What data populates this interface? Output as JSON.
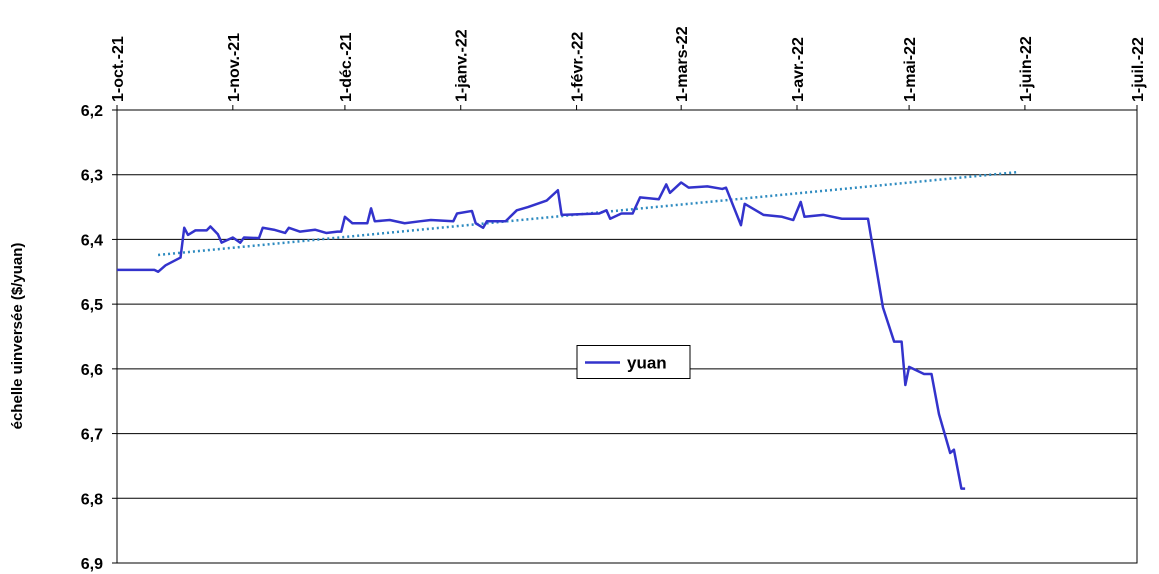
{
  "chart_data": {
    "type": "line",
    "y_axis_label": "échelle uinversée ($/yuan)",
    "y_inverted": true,
    "grid": true,
    "legend": "center",
    "xlim": [
      "2021-10-01",
      "2022-07-01"
    ],
    "xticks": [
      {
        "value": "2021-10-01",
        "label": "1-oct.-21"
      },
      {
        "value": "2021-11-01",
        "label": "1-nov.-21"
      },
      {
        "value": "2021-12-01",
        "label": "1-déc.-21"
      },
      {
        "value": "2022-01-01",
        "label": "1-janv.-22"
      },
      {
        "value": "2022-02-01",
        "label": "1-févr.-22"
      },
      {
        "value": "2022-03-01",
        "label": "1-mars-22"
      },
      {
        "value": "2022-04-01",
        "label": "1-avr.-22"
      },
      {
        "value": "2022-05-01",
        "label": "1-mai-22"
      },
      {
        "value": "2022-06-01",
        "label": "1-juin-22"
      },
      {
        "value": "2022-07-01",
        "label": "1-juil.-22"
      }
    ],
    "ylim": [
      6.2,
      6.9
    ],
    "yticks": [
      {
        "value": 6.2,
        "label": "6,2"
      },
      {
        "value": 6.3,
        "label": "6,3"
      },
      {
        "value": 6.4,
        "label": "6,4"
      },
      {
        "value": 6.5,
        "label": "6,5"
      },
      {
        "value": 6.6,
        "label": "6,6"
      },
      {
        "value": 6.7,
        "label": "6,7"
      },
      {
        "value": 6.8,
        "label": "6,8"
      },
      {
        "value": 6.9,
        "label": "6,9"
      }
    ],
    "series": [
      {
        "name": "yuan",
        "color": "#3333cc",
        "x": [
          "2021-10-01",
          "2021-10-11",
          "2021-10-12",
          "2021-10-14",
          "2021-10-18",
          "2021-10-19",
          "2021-10-20",
          "2021-10-22",
          "2021-10-25",
          "2021-10-26",
          "2021-10-28",
          "2021-10-29",
          "2021-11-01",
          "2021-11-03",
          "2021-11-04",
          "2021-11-08",
          "2021-11-09",
          "2021-11-12",
          "2021-11-15",
          "2021-11-16",
          "2021-11-19",
          "2021-11-23",
          "2021-11-26",
          "2021-11-29",
          "2021-11-30",
          "2021-12-01",
          "2021-12-03",
          "2021-12-07",
          "2021-12-08",
          "2021-12-09",
          "2021-12-13",
          "2021-12-17",
          "2021-12-21",
          "2021-12-24",
          "2021-12-30",
          "2021-12-31",
          "2022-01-04",
          "2022-01-05",
          "2022-01-07",
          "2022-01-08",
          "2022-01-13",
          "2022-01-16",
          "2022-01-19",
          "2022-01-24",
          "2022-01-27",
          "2022-01-28",
          "2022-02-07",
          "2022-02-09",
          "2022-02-10",
          "2022-02-13",
          "2022-02-16",
          "2022-02-18",
          "2022-02-23",
          "2022-02-25",
          "2022-02-26",
          "2022-03-01",
          "2022-03-03",
          "2022-03-08",
          "2022-03-12",
          "2022-03-13",
          "2022-03-17",
          "2022-03-18",
          "2022-03-23",
          "2022-03-28",
          "2022-03-31",
          "2022-04-02",
          "2022-04-03",
          "2022-04-08",
          "2022-04-13",
          "2022-04-20",
          "2022-04-24",
          "2022-04-27",
          "2022-04-29",
          "2022-04-30",
          "2022-05-01",
          "2022-05-05",
          "2022-05-07",
          "2022-05-09",
          "2022-05-12",
          "2022-05-13",
          "2022-05-15",
          "2022-05-16"
        ],
        "values": [
          6.447,
          6.447,
          6.45,
          6.44,
          6.428,
          6.382,
          6.393,
          6.386,
          6.386,
          6.38,
          6.392,
          6.405,
          6.397,
          6.405,
          6.397,
          6.398,
          6.382,
          6.385,
          6.39,
          6.382,
          6.388,
          6.385,
          6.39,
          6.388,
          6.388,
          6.365,
          6.375,
          6.375,
          6.352,
          6.372,
          6.37,
          6.375,
          6.372,
          6.37,
          6.372,
          6.36,
          6.356,
          6.375,
          6.382,
          6.372,
          6.372,
          6.355,
          6.35,
          6.34,
          6.324,
          6.362,
          6.36,
          6.355,
          6.368,
          6.36,
          6.36,
          6.335,
          6.338,
          6.315,
          6.328,
          6.312,
          6.32,
          6.318,
          6.322,
          6.32,
          6.378,
          6.345,
          6.362,
          6.365,
          6.37,
          6.342,
          6.365,
          6.362,
          6.368,
          6.368,
          6.505,
          6.558,
          6.558,
          6.625,
          6.597,
          6.608,
          6.608,
          6.67,
          6.73,
          6.725,
          6.785,
          6.785
        ]
      }
    ],
    "trend": {
      "color": "#2e8bc0",
      "x": [
        "2021-10-12",
        "2022-05-30"
      ],
      "values": [
        6.424,
        6.296
      ]
    }
  }
}
